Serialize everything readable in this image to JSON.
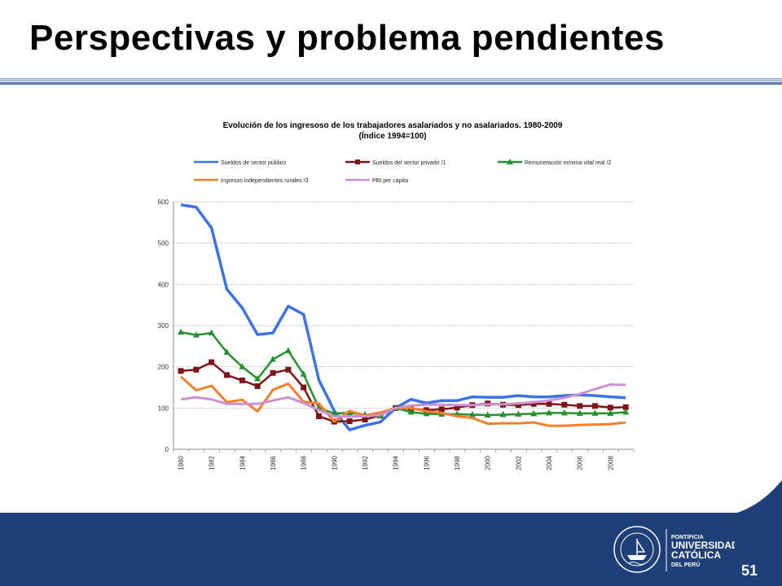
{
  "slide": {
    "title": "Perspectivas y problema pendientes",
    "page_number": "51"
  },
  "logo": {
    "line1": "PONTIFICIA",
    "line2": "UNIVERSIDAD",
    "line3": "CATÓLICA",
    "line4": "DEL PERÚ",
    "seal_motto": "ET LUX IN TENEBRIS LUCET"
  },
  "colors": {
    "footer": "#1f3f78",
    "public": "#3b73e6",
    "private": "#7f1416",
    "minwage": "#23922c",
    "rural": "#f47f2a",
    "gdp": "#cc8fd1"
  },
  "chart_data": {
    "type": "line",
    "title": "Evolución de los ingresoso de los trabajadores asalariados y no asalariados. 1980-2009",
    "subtitle": "(Índice 1994=100)",
    "legend_position": "top",
    "grid": true,
    "ylim": [
      0,
      600
    ],
    "yticks": [
      0,
      100,
      200,
      300,
      400,
      500,
      600
    ],
    "xticks": [
      "1980",
      "1982",
      "1984",
      "1986",
      "1988",
      "1990",
      "1992",
      "1994",
      "1996",
      "1998",
      "2000",
      "2002",
      "2004",
      "2006",
      "2008"
    ],
    "x": [
      1980,
      1981,
      1982,
      1983,
      1984,
      1985,
      1986,
      1987,
      1988,
      1989,
      1990,
      1991,
      1992,
      1993,
      1994,
      1995,
      1996,
      1997,
      1998,
      1999,
      2000,
      2001,
      2002,
      2003,
      2004,
      2005,
      2006,
      2007,
      2008,
      2009
    ],
    "series": [
      {
        "name": "Sueldos de sector público",
        "color": "#3b73e6",
        "marker": "none",
        "values": [
          593,
          587,
          537,
          388,
          343,
          278,
          282,
          347,
          327,
          168,
          93,
          47,
          58,
          66,
          100,
          121,
          112,
          118,
          118,
          127,
          126,
          126,
          130,
          127,
          127,
          130,
          132,
          130,
          127,
          125
        ]
      },
      {
        "name": "Sueldos del sector privado /1",
        "color": "#7f1416",
        "marker": "square",
        "values": [
          190,
          193,
          211,
          180,
          167,
          153,
          185,
          193,
          150,
          80,
          67,
          68,
          72,
          82,
          100,
          98,
          95,
          97,
          101,
          107,
          111,
          108,
          107,
          110,
          110,
          108,
          105,
          105,
          101,
          102
        ]
      },
      {
        "name": "Remuneración mínima vital real /2",
        "color": "#23922c",
        "marker": "triangle",
        "values": [
          284,
          277,
          282,
          235,
          200,
          171,
          218,
          239,
          182,
          100,
          87,
          88,
          84,
          82,
          100,
          90,
          86,
          85,
          85,
          84,
          83,
          84,
          85,
          86,
          88,
          88,
          87,
          87,
          87,
          90
        ]
      },
      {
        "name": "Ingresos independientes rurales /3",
        "color": "#f47f2a",
        "marker": "none",
        "values": [
          176,
          143,
          154,
          114,
          120,
          92,
          144,
          159,
          115,
          111,
          67,
          93,
          82,
          89,
          100,
          100,
          92,
          88,
          80,
          76,
          62,
          63,
          63,
          65,
          57,
          57,
          59,
          60,
          61,
          65
        ]
      },
      {
        "name": "PBI per cápita",
        "color": "#cc8fd1",
        "marker": "none",
        "values": [
          121,
          126,
          121,
          110,
          110,
          110,
          118,
          126,
          112,
          95,
          80,
          80,
          80,
          83,
          100,
          106,
          108,
          108,
          107,
          107,
          109,
          109,
          111,
          114,
          118,
          125,
          134,
          146,
          157,
          156
        ]
      }
    ]
  }
}
